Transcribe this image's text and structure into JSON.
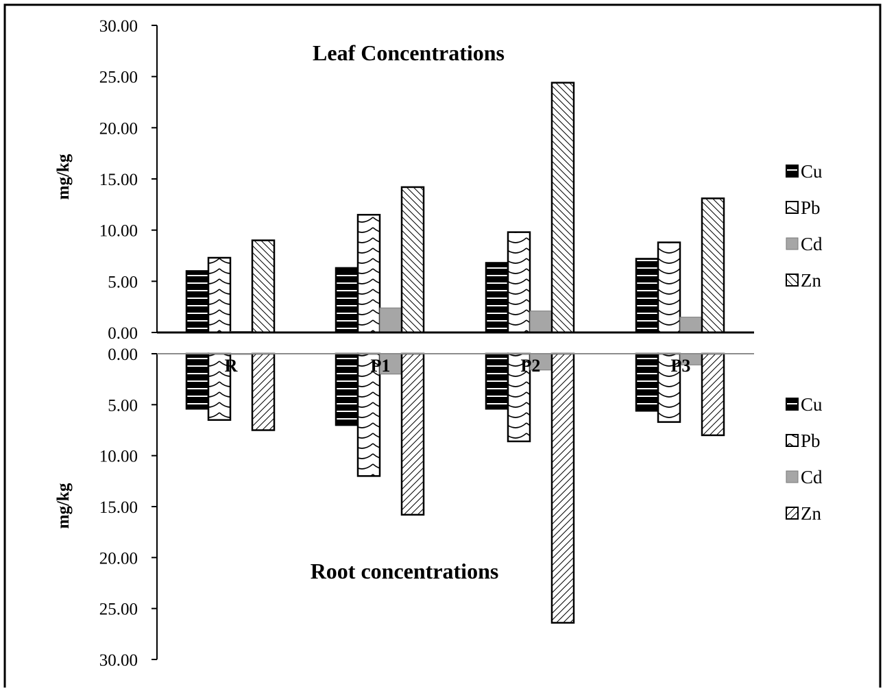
{
  "chart_data": [
    {
      "type": "bar",
      "title": "Leaf Concentrations",
      "ylabel": "mg/kg",
      "xlabel": "",
      "ylim": [
        0,
        30
      ],
      "yticks": [
        "0.00",
        "5.00",
        "10.00",
        "15.00",
        "20.00",
        "25.00",
        "30.00"
      ],
      "categories": [
        "R",
        "P1",
        "P2",
        "P3"
      ],
      "series": [
        {
          "name": "Cu",
          "values": [
            6.0,
            6.3,
            6.8,
            7.2
          ]
        },
        {
          "name": "Pb",
          "values": [
            7.3,
            11.5,
            9.8,
            8.8
          ]
        },
        {
          "name": "Cd",
          "values": [
            0.1,
            2.4,
            2.1,
            1.5
          ]
        },
        {
          "name": "Zn",
          "values": [
            9.0,
            14.2,
            24.4,
            13.1
          ]
        }
      ],
      "legend_position": "right",
      "grid": false
    },
    {
      "type": "bar",
      "title": "Root concentrations",
      "ylabel": "mg/kg",
      "xlabel": "",
      "ylim": [
        0,
        30
      ],
      "y_axis_inverted": true,
      "yticks": [
        "0.00",
        "5.00",
        "10.00",
        "15.00",
        "20.00",
        "25.00",
        "30.00"
      ],
      "categories": [
        "R",
        "P1",
        "P2",
        "P3"
      ],
      "series": [
        {
          "name": "Cu",
          "values": [
            5.4,
            7.0,
            5.4,
            5.6
          ]
        },
        {
          "name": "Pb",
          "values": [
            6.5,
            12.0,
            8.6,
            6.7
          ]
        },
        {
          "name": "Cd",
          "values": [
            0.0,
            2.0,
            1.6,
            1.1
          ]
        },
        {
          "name": "Zn",
          "values": [
            7.5,
            15.8,
            26.4,
            8.0
          ]
        }
      ],
      "legend_position": "right",
      "grid": false
    }
  ]
}
